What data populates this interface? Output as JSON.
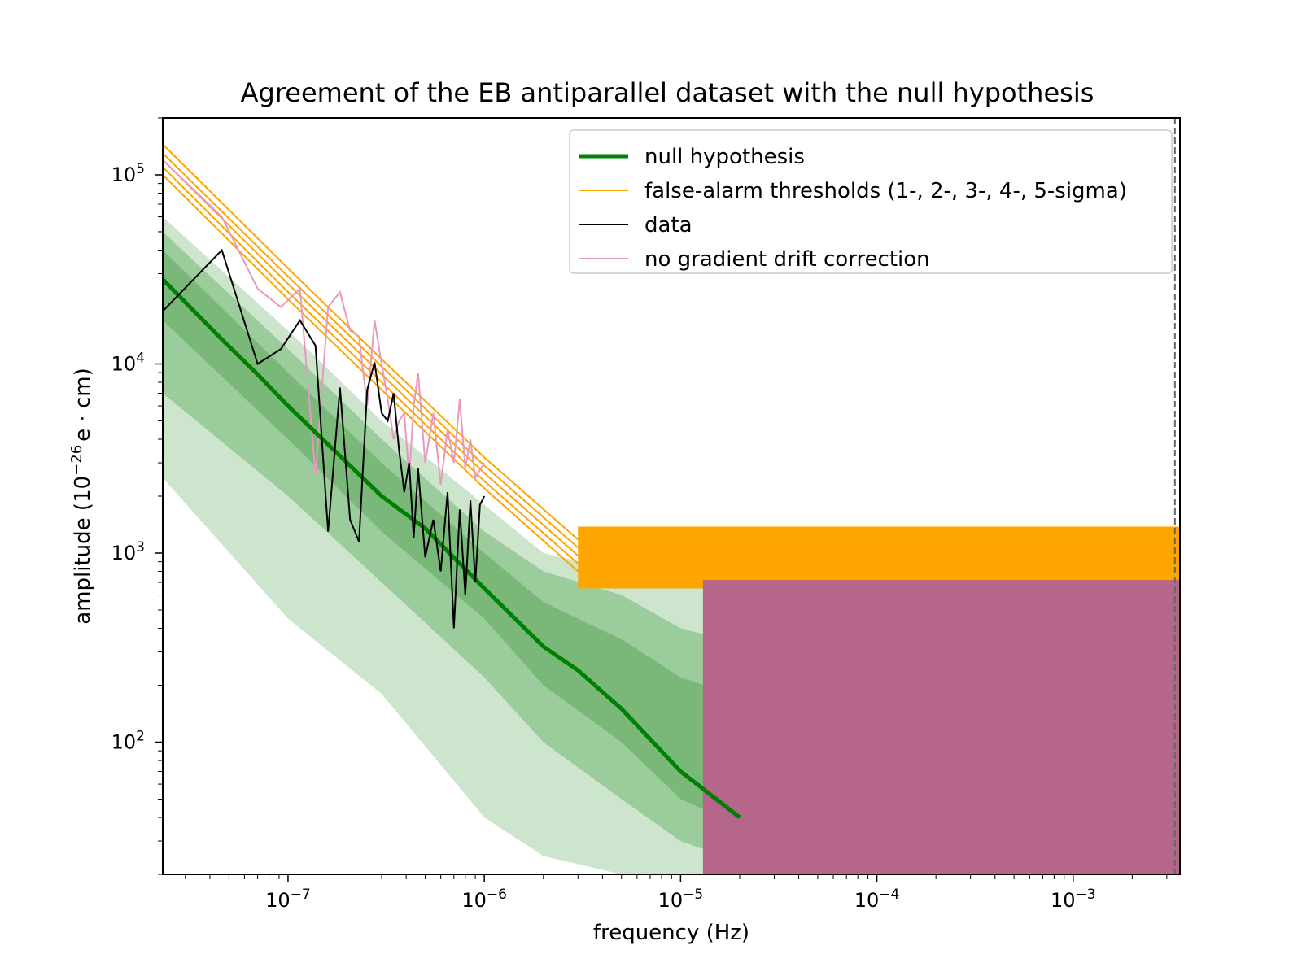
{
  "chart_data": {
    "type": "line",
    "title": "Agreement of the EB antiparallel dataset with the null hypothesis",
    "xlabel": "frequency (Hz)",
    "ylabel_prefix": "amplitude (10",
    "ylabel_exp": "−26",
    "ylabel_suffix": "e · cm)",
    "xscale": "log",
    "yscale": "log",
    "xlim": [
      2.3e-08,
      0.0035
    ],
    "ylim": [
      20,
      200000
    ],
    "x_ticks": [
      {
        "value": 1e-07,
        "base": "10",
        "exp": "−7"
      },
      {
        "value": 1e-06,
        "base": "10",
        "exp": "−6"
      },
      {
        "value": 1e-05,
        "base": "10",
        "exp": "−5"
      },
      {
        "value": 0.0001,
        "base": "10",
        "exp": "−4"
      },
      {
        "value": 0.001,
        "base": "10",
        "exp": "−3"
      }
    ],
    "y_ticks": [
      {
        "value": 100,
        "base": "10",
        "exp": "2"
      },
      {
        "value": 1000,
        "base": "10",
        "exp": "3"
      },
      {
        "value": 10000,
        "base": "10",
        "exp": "4"
      },
      {
        "value": 100000,
        "base": "10",
        "exp": "5"
      }
    ],
    "vline_dashed": [
      2.3e-08,
      0.0033
    ],
    "legend_position": "upper right",
    "series": [
      {
        "name": "null hypothesis",
        "color": "#008000",
        "x": [
          2.3e-08,
          4.6e-08,
          7e-08,
          1e-07,
          2e-07,
          3e-07,
          5e-07,
          1e-06,
          2e-06,
          3e-06,
          5e-06,
          1e-05,
          2e-05
        ],
        "y": [
          28000,
          13500,
          8800,
          6000,
          3000,
          2000,
          1350,
          650,
          320,
          240,
          150,
          70,
          40
        ]
      },
      {
        "name": "false-alarm thresholds (1-, 2-, 3-, 4-, 5-sigma)",
        "color": "#ffa500",
        "x": [
          2.3e-08,
          1e-07,
          3e-07,
          1e-06,
          3e-06,
          5e-06,
          1e-05,
          3e-05,
          0.0001,
          0.001,
          0.0035
        ],
        "y_levels": [
          [
            100000,
            22000,
            7300,
            2200,
            800,
            800,
            800,
            800,
            800,
            800,
            800
          ],
          [
            110000,
            24000,
            8000,
            2400,
            880,
            880,
            880,
            880,
            880,
            880,
            880
          ],
          [
            120000,
            26500,
            8800,
            2650,
            970,
            970,
            970,
            970,
            970,
            970,
            970
          ],
          [
            130000,
            29000,
            9700,
            2900,
            1070,
            1070,
            1070,
            1070,
            1070,
            1070,
            1070
          ],
          [
            145000,
            32000,
            10600,
            3200,
            1180,
            1180,
            1180,
            1180,
            1180,
            1180,
            1180
          ]
        ]
      },
      {
        "name": "data",
        "color": "#000000",
        "x": [
          2.3e-08,
          4.6e-08,
          7e-08,
          9.2e-08,
          1.15e-07,
          1.38e-07,
          1.6e-07,
          1.84e-07,
          2.07e-07,
          2.3e-07,
          2.53e-07,
          2.76e-07,
          3e-07,
          3.22e-07,
          3.45e-07,
          3.68e-07,
          3.91e-07,
          4.14e-07,
          4.37e-07,
          4.6e-07,
          5e-07,
          5.5e-07,
          6e-07,
          6.5e-07,
          7e-07,
          7.5e-07,
          8e-07,
          8.5e-07,
          9e-07,
          9.5e-07,
          1e-06
        ],
        "y": [
          19000,
          40000,
          10000,
          12000,
          17000,
          12500,
          1300,
          7500,
          1500,
          1150,
          7300,
          10200,
          5500,
          5000,
          7000,
          3500,
          2100,
          3000,
          1200,
          2800,
          950,
          1500,
          800,
          2100,
          400,
          1700,
          600,
          1900,
          700,
          1800,
          2000
        ]
      },
      {
        "name": "no gradient drift correction",
        "color": "#e899bf",
        "x": [
          2.3e-08,
          4.6e-08,
          7e-08,
          9.2e-08,
          1.15e-07,
          1.38e-07,
          1.6e-07,
          1.84e-07,
          2.07e-07,
          2.3e-07,
          2.53e-07,
          2.76e-07,
          3e-07,
          3.22e-07,
          3.45e-07,
          3.68e-07,
          3.91e-07,
          4.14e-07,
          4.37e-07,
          4.6e-07,
          5e-07,
          5.5e-07,
          6e-07,
          6.5e-07,
          7e-07,
          7.5e-07,
          8e-07,
          8.5e-07,
          9e-07,
          1e-06
        ],
        "y": [
          120000,
          60000,
          25000,
          20000,
          25000,
          2600,
          20000,
          24000,
          15000,
          14000,
          6000,
          17000,
          10000,
          6500,
          4000,
          5000,
          5500,
          2500,
          6000,
          9000,
          3000,
          5500,
          2300,
          4500,
          3000,
          6500,
          2800,
          4000,
          2500,
          3000
        ]
      }
    ],
    "bands": [
      {
        "name": "outer band",
        "color": "#7fbf7f",
        "opacity": 0.4,
        "x": [
          2.3e-08,
          1e-07,
          3e-07,
          1e-06,
          2e-06,
          5e-06,
          1e-05,
          3e-05
        ],
        "upper": [
          60000,
          15000,
          5000,
          1800,
          1000,
          800,
          700,
          700
        ],
        "lower": [
          2500,
          450,
          180,
          40,
          25,
          20,
          20,
          20
        ]
      },
      {
        "name": "middle band",
        "color": "#5fae5f",
        "opacity": 0.45,
        "x": [
          2.3e-08,
          1e-07,
          3e-07,
          1e-06,
          2e-06,
          5e-06,
          1e-05,
          3e-05
        ],
        "upper": [
          50000,
          12000,
          4000,
          1300,
          800,
          600,
          400,
          300
        ],
        "lower": [
          7000,
          2000,
          700,
          220,
          100,
          50,
          30,
          20
        ]
      },
      {
        "name": "inner band",
        "color": "#4fa04f",
        "opacity": 0.45,
        "x": [
          2.3e-08,
          1e-07,
          3e-07,
          1e-06,
          2e-06,
          5e-06,
          1e-05,
          3e-05
        ],
        "upper": [
          40000,
          9000,
          3000,
          1000,
          550,
          350,
          220,
          150
        ],
        "lower": [
          17000,
          4000,
          1300,
          450,
          200,
          100,
          50,
          30
        ]
      }
    ],
    "notes_fill": {
      "orange_band": {
        "color": "#ffa500",
        "x_from": 3e-06,
        "x_to": 0.0035,
        "upper": 1380,
        "lower": 650
      },
      "pink_fill": {
        "color": "#b5668a",
        "x_from": 1.3e-05,
        "x_to": 0.0035,
        "upper": 720,
        "lower": 20
      }
    }
  }
}
